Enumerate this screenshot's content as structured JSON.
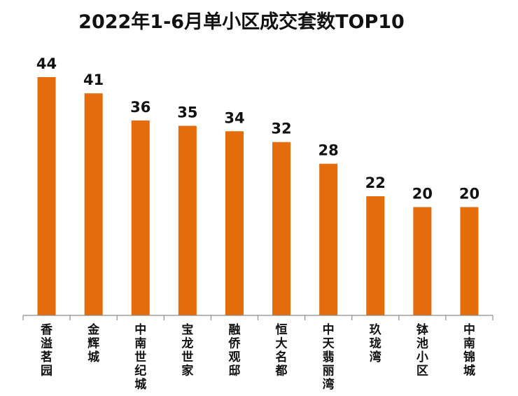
{
  "chart_data": {
    "type": "bar",
    "title": "2022年1-6月单小区成交套数TOP10",
    "categories": [
      "香溢茗园",
      "金辉城",
      "中南世纪城",
      "宝龙世家",
      "融侨观邸",
      "恒大名都",
      "中天翡丽湾",
      "玖珑湾",
      "钵池小区",
      "中南锦城"
    ],
    "values": [
      44,
      41,
      36,
      35,
      34,
      32,
      28,
      22,
      20,
      20
    ],
    "xlabel": "",
    "ylabel": "",
    "ylim": [
      0,
      44
    ],
    "grid": false,
    "legend": "none",
    "bar_color": "#E46C0A",
    "show_data_labels": true
  }
}
